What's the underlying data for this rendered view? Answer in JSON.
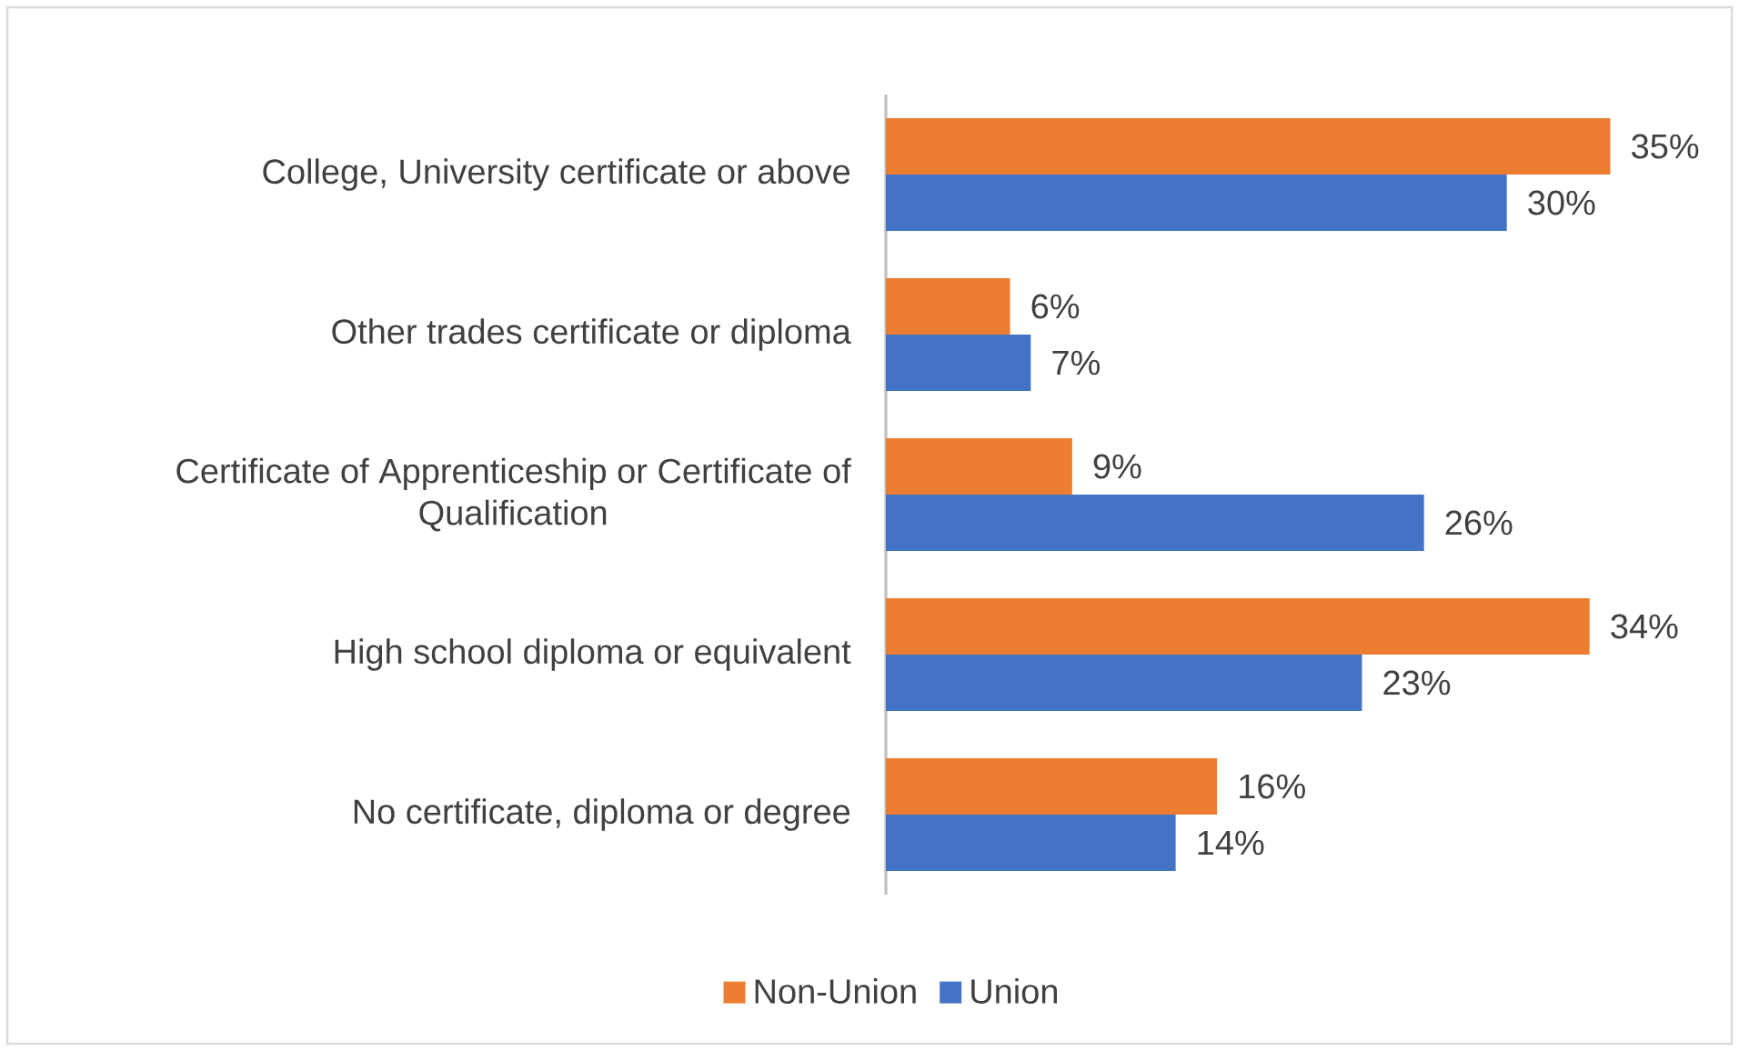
{
  "chart_data": {
    "type": "bar",
    "orientation": "horizontal",
    "categories": [
      "College, University certificate or above",
      "Other trades certificate or diploma",
      "Certificate of Apprenticeship or Certificate of Qualification",
      "High school diploma or equivalent",
      "No certificate, diploma or degree"
    ],
    "series": [
      {
        "name": "Non-Union",
        "color": "#ed7d31",
        "values": [
          35,
          6,
          9,
          34,
          16
        ],
        "value_labels": [
          "35%",
          "6%",
          "9%",
          "34%",
          "16%"
        ]
      },
      {
        "name": "Union",
        "color": "#4472c4",
        "values": [
          30,
          7,
          26,
          23,
          14
        ],
        "value_labels": [
          "30%",
          "7%",
          "26%",
          "23%",
          "14%"
        ]
      }
    ],
    "legend": "bottom"
  }
}
